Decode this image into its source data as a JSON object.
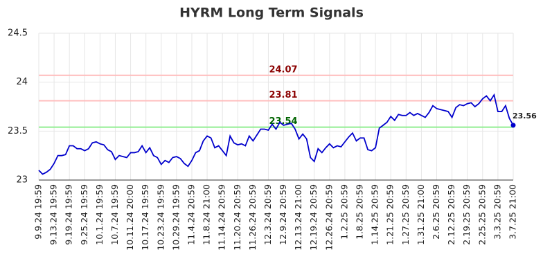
{
  "chart_data": {
    "type": "line",
    "title": "HYRM Long Term Signals",
    "categories": [
      "9.9.24 19:59",
      null,
      null,
      null,
      "9.13.24 19:59",
      null,
      null,
      null,
      "9.19.24 19:59",
      null,
      null,
      null,
      "9.25.24 19:59",
      null,
      null,
      null,
      "10.1.24 19:59",
      null,
      null,
      null,
      "10.7.24 19:59",
      null,
      null,
      null,
      "10.11.24 20:00",
      null,
      null,
      null,
      "10.17.24 19:59",
      null,
      null,
      null,
      "10.23.24 19:59",
      null,
      null,
      null,
      "10.29.24 19:59",
      null,
      null,
      null,
      "11.4.24 20:59",
      null,
      null,
      null,
      "11.8.24 21:00",
      null,
      null,
      null,
      "11.14.24 20:59",
      null,
      null,
      null,
      "11.20.24 20:59",
      null,
      null,
      null,
      "11.26.24 20:59",
      null,
      null,
      null,
      "12.3.24 20:59",
      null,
      null,
      null,
      "12.9.24 20:59",
      null,
      null,
      null,
      "12.13.24 21:00",
      null,
      null,
      null,
      "12.19.24 20:59",
      null,
      null,
      null,
      "12.26.24 20:59",
      null,
      null,
      null,
      "1.2.25 20:59",
      null,
      null,
      null,
      "1.8.25 20:59",
      null,
      null,
      null,
      "1.14.25 20:59",
      null,
      null,
      null,
      "1.21.25 20:59",
      null,
      null,
      null,
      "1.27.25 20:59",
      null,
      null,
      null,
      "1.31.25 21:00",
      null,
      null,
      null,
      "2.6.25 20:59",
      null,
      null,
      null,
      "2.12.25 20:59",
      null,
      null,
      null,
      "2.19.25 20:59",
      null,
      null,
      null,
      "2.25.25 20:59",
      null,
      null,
      null,
      "3.3.25 20:59",
      null,
      null,
      null,
      "3.7.25 21:00"
    ],
    "values": [
      23.1,
      23.06,
      23.08,
      23.11,
      23.17,
      23.25,
      23.25,
      23.26,
      23.35,
      23.35,
      23.32,
      23.32,
      23.3,
      23.32,
      23.38,
      23.39,
      23.37,
      23.36,
      23.31,
      23.29,
      23.21,
      23.25,
      23.24,
      23.23,
      23.28,
      23.28,
      23.29,
      23.35,
      23.28,
      23.33,
      23.25,
      23.23,
      23.16,
      23.2,
      23.18,
      23.23,
      23.24,
      23.22,
      23.17,
      23.14,
      23.2,
      23.28,
      23.3,
      23.4,
      23.45,
      23.43,
      23.33,
      23.35,
      23.3,
      23.25,
      23.45,
      23.38,
      23.36,
      23.37,
      23.35,
      23.45,
      23.4,
      23.46,
      23.52,
      23.52,
      23.51,
      23.57,
      23.52,
      23.59,
      23.56,
      23.57,
      23.58,
      23.52,
      23.42,
      23.47,
      23.42,
      23.23,
      23.19,
      23.32,
      23.28,
      23.33,
      23.37,
      23.33,
      23.35,
      23.34,
      23.39,
      23.44,
      23.48,
      23.4,
      23.43,
      23.43,
      23.31,
      23.3,
      23.33,
      23.53,
      23.56,
      23.59,
      23.65,
      23.61,
      23.67,
      23.66,
      23.66,
      23.69,
      23.66,
      23.68,
      23.66,
      23.64,
      23.69,
      23.76,
      23.73,
      23.72,
      23.71,
      23.7,
      23.64,
      23.74,
      23.77,
      23.76,
      23.78,
      23.79,
      23.75,
      23.78,
      23.83,
      23.86,
      23.81,
      23.87,
      23.7,
      23.7,
      23.76,
      23.63,
      23.56
    ],
    "color": "#0000cc",
    "reference_lines": [
      {
        "value": 24.07,
        "color": "#ffbcbc",
        "label_color": "#8b0000"
      },
      {
        "value": 23.81,
        "color": "#ffbcbc",
        "label_color": "#8b0000"
      },
      {
        "value": 23.54,
        "color": "#90ee90",
        "label_color": "#006400"
      }
    ],
    "ylim": [
      23,
      24.5
    ],
    "yticks": [
      23,
      23.5,
      24,
      24.5
    ],
    "grid": true
  }
}
